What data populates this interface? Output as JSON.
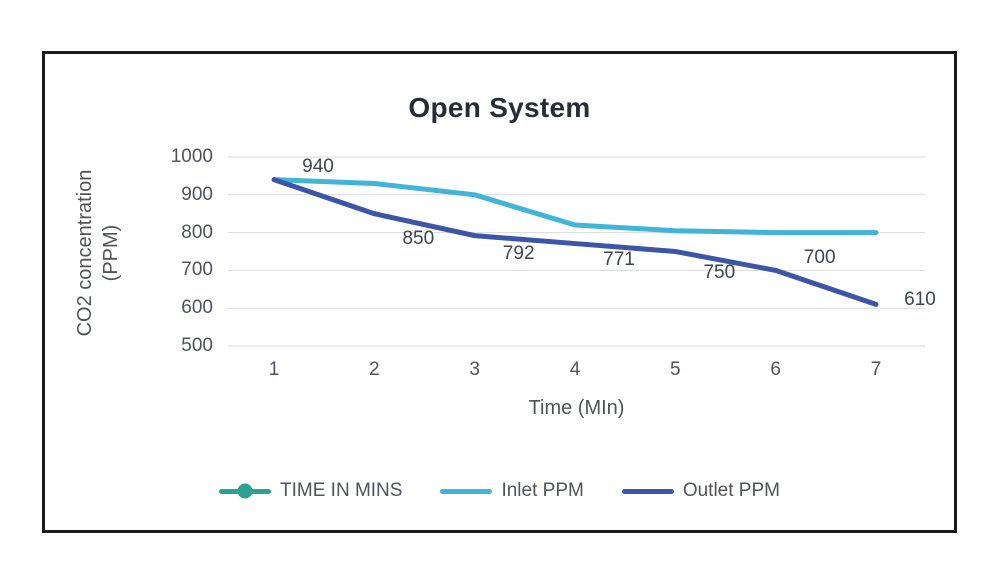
{
  "window": {
    "background": "#ffffff",
    "frame_border_color": "#1a1a1a"
  },
  "labels": {
    "y_axis_line1": "CO2 concentration",
    "y_axis_line2": "(PPM)"
  },
  "chart_data": {
    "type": "line",
    "title": "Open System",
    "xlabel": "Time (MIn)",
    "ylabel": "CO2 concentration (PPM)",
    "categories": [
      "1",
      "2",
      "3",
      "4",
      "5",
      "6",
      "7"
    ],
    "y_ticks": [
      "1000",
      "900",
      "800",
      "700",
      "600",
      "500"
    ],
    "ylim": [
      500,
      1000
    ],
    "grid": "horizontal",
    "gridline_color": "#d9d9d9",
    "legend_position": "bottom",
    "title_color": "#272d38",
    "text_color": "#4f545c",
    "data_label_color": "#3f454e",
    "series": [
      {
        "name": "TIME IN MINS",
        "color": "#2ba191",
        "marker": "circle",
        "values": []
      },
      {
        "name": "Inlet PPM",
        "color": "#41b4d8",
        "values": [
          940,
          930,
          900,
          820,
          805,
          800,
          800
        ]
      },
      {
        "name": "Outlet PPM",
        "color": "#3c55a6",
        "values": [
          940,
          850,
          792,
          771,
          750,
          700,
          610
        ],
        "data_labels": [
          "940",
          "850",
          "792",
          "771",
          "750",
          "700",
          "610"
        ]
      }
    ]
  }
}
